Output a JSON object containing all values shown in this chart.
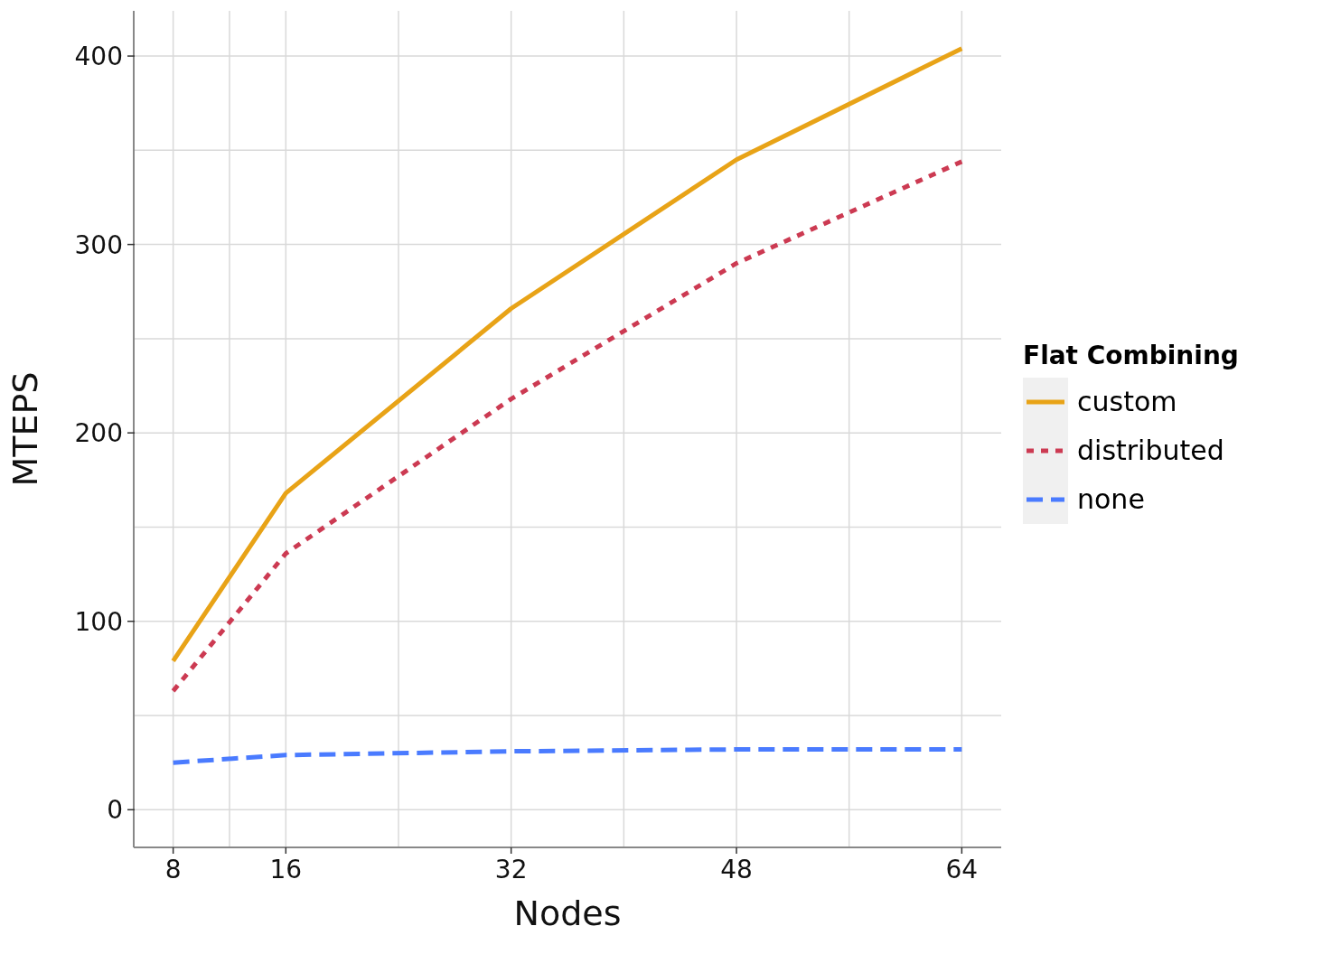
{
  "chart_data": {
    "type": "line",
    "xlabel": "Nodes",
    "ylabel": "MTEPS",
    "legend_title": "Flat Combining",
    "legend": "right",
    "grid": true,
    "x": [
      8,
      16,
      32,
      48,
      64
    ],
    "xlim": [
      5.2,
      66.8
    ],
    "xticks": [
      8,
      {
        "value": 12,
        "label": null
      },
      16,
      {
        "value": 24,
        "label": null
      },
      32,
      {
        "value": 40,
        "label": null
      },
      48,
      {
        "value": 56,
        "label": null
      },
      64
    ],
    "ylim": [
      -20,
      424
    ],
    "yticks": [
      0,
      {
        "value": 50,
        "label": null
      },
      100,
      {
        "value": 150,
        "label": null
      },
      200,
      {
        "value": 250,
        "label": null
      },
      300,
      {
        "value": 350,
        "label": null
      },
      400
    ],
    "series": [
      {
        "name": "custom",
        "color": "#e8a317",
        "line_style": "solid",
        "values": [
          79,
          168,
          266,
          345,
          404
        ]
      },
      {
        "name": "distributed",
        "color": "#cc3a52",
        "line_style": "dotted",
        "values": [
          63,
          136,
          218,
          290,
          344
        ]
      },
      {
        "name": "none",
        "color": "#4a7bff",
        "line_style": "dashed",
        "values": [
          25,
          29,
          31,
          32,
          32
        ]
      }
    ]
  }
}
